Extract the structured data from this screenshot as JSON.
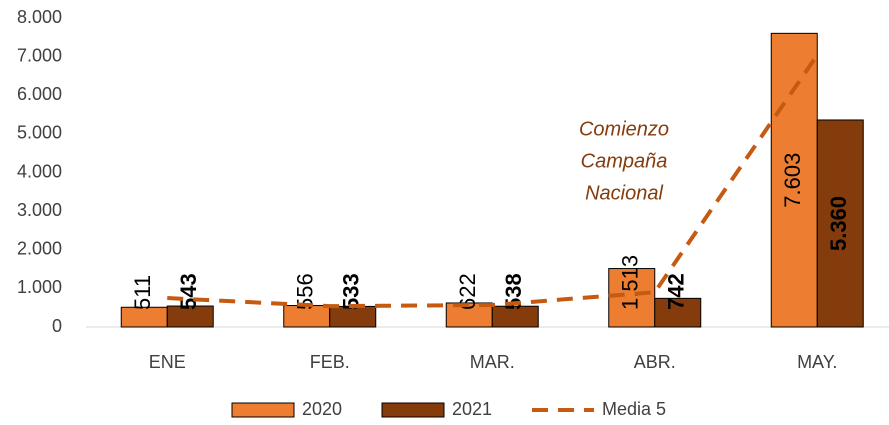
{
  "chart_data": {
    "type": "bar",
    "categories": [
      "ENE",
      "FEB.",
      "MAR.",
      "ABR.",
      "MAY."
    ],
    "series": [
      {
        "name": "2020",
        "color": "#ed7d31",
        "values": [
          511,
          556,
          622,
          1513,
          7603
        ],
        "value_labels": [
          "511",
          "556",
          "622",
          "1.513",
          "7.603"
        ]
      },
      {
        "name": "2021",
        "color": "#843c0c",
        "values": [
          543,
          533,
          538,
          742,
          5360
        ],
        "value_labels": [
          "543",
          "533",
          "538",
          "742",
          "5.360"
        ]
      },
      {
        "name": "Media 5",
        "type": "line",
        "color": "#c55a11",
        "values": [
          750,
          540,
          570,
          900,
          7040
        ]
      }
    ],
    "annotation": [
      "Comienzo",
      "Campaña",
      "Nacional"
    ],
    "ylim": [
      0,
      8000
    ],
    "yticks": [
      0,
      {
        "value": 1000,
        "label": "1.000"
      },
      {
        "value": 2000,
        "label": "2.000"
      },
      {
        "value": 3000,
        "label": "3.000"
      },
      {
        "value": 4000,
        "label": "4.000"
      },
      {
        "value": 5000,
        "label": "5.000"
      },
      {
        "value": 6000,
        "label": "6.000"
      },
      {
        "value": 7000,
        "label": "7.000"
      },
      {
        "value": 8000,
        "label": "8.000"
      }
    ],
    "legend": "bottom"
  }
}
